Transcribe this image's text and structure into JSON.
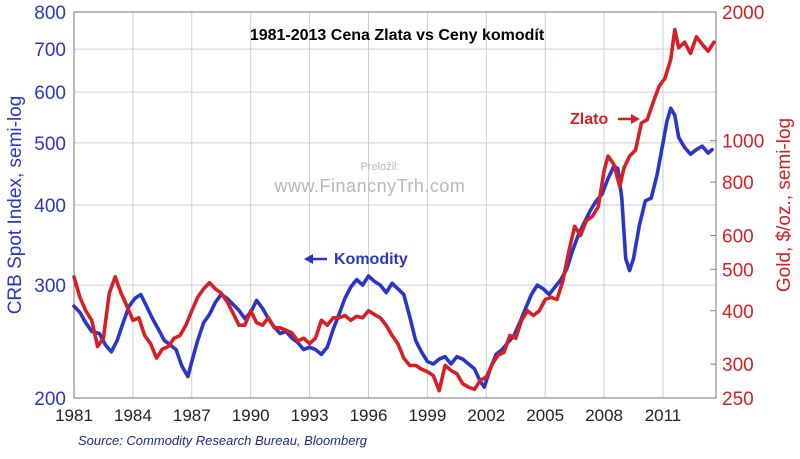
{
  "chart_data": {
    "type": "line",
    "title": "1981-2013 Cena Zlata vs Ceny komodít",
    "source": "Source: Commodity Research Bureau, Bloomberg",
    "watermark_top": "Preložil:",
    "watermark_main": "www.FinancnyTrh.com",
    "y_left": {
      "label": "CRB Spot Index, semi-log",
      "scale": "log",
      "range": [
        200,
        800
      ],
      "ticks": [
        200,
        300,
        400,
        500,
        600,
        700,
        800
      ],
      "color": "#2b36c9"
    },
    "y_right": {
      "label": "Gold, $/oz., semi-log",
      "scale": "log",
      "range": [
        250,
        2000
      ],
      "ticks": [
        250,
        300,
        400,
        500,
        600,
        800,
        1000,
        2000
      ],
      "tick_labels": [
        "250",
        "300",
        "400",
        "500",
        "600",
        "800",
        "1000",
        "2000"
      ],
      "color": "#d81f26"
    },
    "x": {
      "range": [
        1981,
        2013.7
      ],
      "ticks": [
        1981,
        1984,
        1987,
        1990,
        1993,
        1996,
        1999,
        2002,
        2005,
        2008,
        2011
      ]
    },
    "grid": true,
    "series": [
      {
        "name": "Komodity",
        "axis": "left",
        "color": "#2b36c9",
        "points": [
          [
            1981.0,
            278
          ],
          [
            1981.3,
            272
          ],
          [
            1981.6,
            262
          ],
          [
            1981.9,
            254
          ],
          [
            1982.3,
            252
          ],
          [
            1982.6,
            242
          ],
          [
            1982.9,
            236
          ],
          [
            1983.2,
            246
          ],
          [
            1983.5,
            262
          ],
          [
            1983.8,
            278
          ],
          [
            1984.1,
            286
          ],
          [
            1984.4,
            290
          ],
          [
            1984.7,
            278
          ],
          [
            1985.0,
            266
          ],
          [
            1985.3,
            256
          ],
          [
            1985.6,
            246
          ],
          [
            1985.9,
            242
          ],
          [
            1986.2,
            238
          ],
          [
            1986.5,
            224
          ],
          [
            1986.8,
            216
          ],
          [
            1987.0,
            228
          ],
          [
            1987.3,
            246
          ],
          [
            1987.6,
            262
          ],
          [
            1987.9,
            270
          ],
          [
            1988.2,
            282
          ],
          [
            1988.5,
            290
          ],
          [
            1988.8,
            286
          ],
          [
            1989.1,
            280
          ],
          [
            1989.4,
            274
          ],
          [
            1989.7,
            266
          ],
          [
            1990.0,
            272
          ],
          [
            1990.3,
            284
          ],
          [
            1990.6,
            276
          ],
          [
            1990.9,
            266
          ],
          [
            1991.2,
            258
          ],
          [
            1991.5,
            252
          ],
          [
            1991.8,
            254
          ],
          [
            1992.1,
            248
          ],
          [
            1992.4,
            244
          ],
          [
            1992.7,
            238
          ],
          [
            1993.0,
            240
          ],
          [
            1993.3,
            238
          ],
          [
            1993.6,
            234
          ],
          [
            1993.9,
            240
          ],
          [
            1994.2,
            256
          ],
          [
            1994.5,
            270
          ],
          [
            1994.8,
            286
          ],
          [
            1995.1,
            298
          ],
          [
            1995.4,
            306
          ],
          [
            1995.7,
            300
          ],
          [
            1996.0,
            310
          ],
          [
            1996.3,
            304
          ],
          [
            1996.6,
            300
          ],
          [
            1996.9,
            292
          ],
          [
            1997.2,
            302
          ],
          [
            1997.5,
            296
          ],
          [
            1997.8,
            290
          ],
          [
            1998.1,
            268
          ],
          [
            1998.4,
            246
          ],
          [
            1998.7,
            236
          ],
          [
            1999.0,
            228
          ],
          [
            1999.3,
            226
          ],
          [
            1999.6,
            230
          ],
          [
            1999.9,
            232
          ],
          [
            2000.2,
            226
          ],
          [
            2000.5,
            232
          ],
          [
            2000.8,
            230
          ],
          [
            2001.1,
            226
          ],
          [
            2001.4,
            222
          ],
          [
            2001.7,
            212
          ],
          [
            2001.9,
            208
          ],
          [
            2002.2,
            222
          ],
          [
            2002.5,
            234
          ],
          [
            2002.8,
            238
          ],
          [
            2003.1,
            244
          ],
          [
            2003.4,
            250
          ],
          [
            2003.7,
            262
          ],
          [
            2004.0,
            276
          ],
          [
            2004.3,
            290
          ],
          [
            2004.6,
            300
          ],
          [
            2004.9,
            296
          ],
          [
            2005.2,
            290
          ],
          [
            2005.5,
            298
          ],
          [
            2005.8,
            306
          ],
          [
            2006.1,
            318
          ],
          [
            2006.4,
            340
          ],
          [
            2006.7,
            360
          ],
          [
            2007.0,
            376
          ],
          [
            2007.3,
            392
          ],
          [
            2007.6,
            406
          ],
          [
            2007.9,
            416
          ],
          [
            2008.2,
            440
          ],
          [
            2008.5,
            460
          ],
          [
            2008.7,
            456
          ],
          [
            2008.9,
            410
          ],
          [
            2009.1,
            330
          ],
          [
            2009.3,
            316
          ],
          [
            2009.5,
            330
          ],
          [
            2009.8,
            372
          ],
          [
            2010.1,
            406
          ],
          [
            2010.4,
            410
          ],
          [
            2010.7,
            446
          ],
          [
            2011.0,
            500
          ],
          [
            2011.2,
            540
          ],
          [
            2011.4,
            566
          ],
          [
            2011.6,
            552
          ],
          [
            2011.8,
            510
          ],
          [
            2012.1,
            492
          ],
          [
            2012.4,
            480
          ],
          [
            2012.7,
            488
          ],
          [
            2013.0,
            494
          ],
          [
            2013.3,
            482
          ],
          [
            2013.5,
            488
          ]
        ]
      },
      {
        "name": "Zlato",
        "axis": "right",
        "color": "#d81f26",
        "points": [
          [
            1981.0,
            480
          ],
          [
            1981.3,
            430
          ],
          [
            1981.6,
            400
          ],
          [
            1981.9,
            380
          ],
          [
            1982.2,
            330
          ],
          [
            1982.5,
            345
          ],
          [
            1982.8,
            440
          ],
          [
            1983.1,
            480
          ],
          [
            1983.4,
            440
          ],
          [
            1983.7,
            410
          ],
          [
            1984.0,
            380
          ],
          [
            1984.3,
            385
          ],
          [
            1984.6,
            350
          ],
          [
            1984.9,
            335
          ],
          [
            1985.2,
            310
          ],
          [
            1985.5,
            325
          ],
          [
            1985.8,
            330
          ],
          [
            1986.1,
            345
          ],
          [
            1986.4,
            350
          ],
          [
            1986.7,
            370
          ],
          [
            1987.0,
            400
          ],
          [
            1987.3,
            430
          ],
          [
            1987.6,
            450
          ],
          [
            1987.9,
            465
          ],
          [
            1988.2,
            450
          ],
          [
            1988.5,
            440
          ],
          [
            1988.8,
            420
          ],
          [
            1989.1,
            395
          ],
          [
            1989.4,
            370
          ],
          [
            1989.7,
            370
          ],
          [
            1990.0,
            400
          ],
          [
            1990.3,
            375
          ],
          [
            1990.6,
            370
          ],
          [
            1990.9,
            385
          ],
          [
            1991.2,
            365
          ],
          [
            1991.5,
            365
          ],
          [
            1991.8,
            360
          ],
          [
            1992.1,
            355
          ],
          [
            1992.4,
            340
          ],
          [
            1992.7,
            345
          ],
          [
            1993.0,
            335
          ],
          [
            1993.3,
            345
          ],
          [
            1993.6,
            380
          ],
          [
            1993.9,
            370
          ],
          [
            1994.2,
            385
          ],
          [
            1994.5,
            385
          ],
          [
            1994.8,
            390
          ],
          [
            1995.1,
            380
          ],
          [
            1995.4,
            388
          ],
          [
            1995.7,
            385
          ],
          [
            1996.0,
            400
          ],
          [
            1996.3,
            392
          ],
          [
            1996.6,
            385
          ],
          [
            1996.9,
            370
          ],
          [
            1997.2,
            350
          ],
          [
            1997.5,
            335
          ],
          [
            1997.8,
            310
          ],
          [
            1998.1,
            298
          ],
          [
            1998.4,
            298
          ],
          [
            1998.7,
            292
          ],
          [
            1999.0,
            288
          ],
          [
            1999.3,
            282
          ],
          [
            1999.6,
            260
          ],
          [
            1999.9,
            298
          ],
          [
            2000.2,
            290
          ],
          [
            2000.5,
            285
          ],
          [
            2000.8,
            270
          ],
          [
            2001.1,
            265
          ],
          [
            2001.4,
            262
          ],
          [
            2001.7,
            275
          ],
          [
            2002.0,
            280
          ],
          [
            2002.3,
            300
          ],
          [
            2002.6,
            315
          ],
          [
            2002.9,
            320
          ],
          [
            2003.2,
            350
          ],
          [
            2003.5,
            345
          ],
          [
            2003.8,
            380
          ],
          [
            2004.1,
            400
          ],
          [
            2004.4,
            390
          ],
          [
            2004.7,
            400
          ],
          [
            2005.0,
            425
          ],
          [
            2005.3,
            430
          ],
          [
            2005.6,
            425
          ],
          [
            2005.9,
            470
          ],
          [
            2006.2,
            550
          ],
          [
            2006.5,
            630
          ],
          [
            2006.8,
            600
          ],
          [
            2007.1,
            650
          ],
          [
            2007.4,
            665
          ],
          [
            2007.7,
            700
          ],
          [
            2008.0,
            850
          ],
          [
            2008.2,
            920
          ],
          [
            2008.5,
            880
          ],
          [
            2008.8,
            780
          ],
          [
            2009.0,
            860
          ],
          [
            2009.3,
            920
          ],
          [
            2009.6,
            950
          ],
          [
            2009.9,
            1100
          ],
          [
            2010.2,
            1120
          ],
          [
            2010.5,
            1230
          ],
          [
            2010.8,
            1340
          ],
          [
            2011.1,
            1400
          ],
          [
            2011.4,
            1550
          ],
          [
            2011.6,
            1820
          ],
          [
            2011.8,
            1650
          ],
          [
            2012.1,
            1700
          ],
          [
            2012.4,
            1600
          ],
          [
            2012.7,
            1750
          ],
          [
            2013.0,
            1680
          ],
          [
            2013.3,
            1620
          ],
          [
            2013.6,
            1700
          ]
        ]
      }
    ],
    "annotations": [
      {
        "text": "Komodity",
        "arrow": "left",
        "series": "Komodity"
      },
      {
        "text": "Zlato",
        "arrow": "right",
        "series": "Zlato"
      }
    ]
  }
}
